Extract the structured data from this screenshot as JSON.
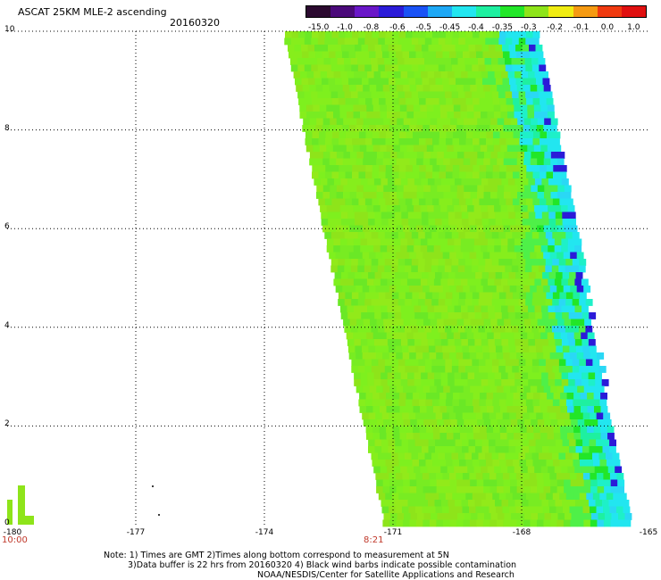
{
  "header": {
    "title": "ASCAT 25KM MLE-2 ascending",
    "date": "20160320"
  },
  "colorbar": {
    "labels": [
      "-15.0",
      "-1.0",
      "-0.8",
      "-0.6",
      "-0.5",
      "-0.45",
      "-0.4",
      "-0.35",
      "-0.3",
      "-0.2",
      "-0.1",
      "0.0",
      "1.0"
    ],
    "colors": [
      "#2b0a2f",
      "#4b0a7a",
      "#6a17c8",
      "#2b1bd8",
      "#1a52f5",
      "#1ea8f5",
      "#22e6f0",
      "#1ef0a0",
      "#22e628",
      "#8ee41a",
      "#f0ec12",
      "#f59a12",
      "#ef3a10",
      "#e01010"
    ]
  },
  "axes": {
    "y_ticks": [
      "10",
      "8",
      "6",
      "4",
      "2",
      "0"
    ],
    "x_ticks": [
      "-180",
      "-177",
      "-174",
      "-171",
      "-168",
      "-165"
    ],
    "x_range": [
      -180,
      -165
    ],
    "y_range": [
      0,
      10
    ]
  },
  "times": {
    "left": "10:00",
    "mid": "8:21"
  },
  "notes": {
    "line1": "Note: 1) Times are GMT 2)Times along bottom correspond to measurement at 5N",
    "line2": "3)Data buffer is 22 hrs from 20160320 4) Black wind barbs indicate possible contamination",
    "line3": "NOAA/NESDIS/Center for Satellite Applications and Research"
  }
}
